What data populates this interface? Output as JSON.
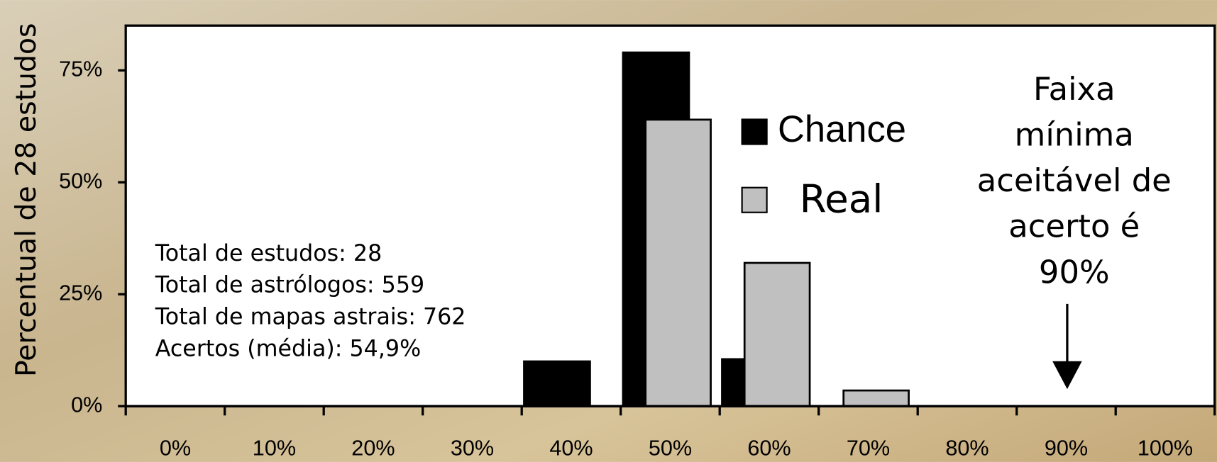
{
  "chart_data": {
    "type": "bar",
    "y_label": "Percentual de 28 estudos",
    "categories": [
      "0%",
      "10%",
      "20%",
      "30%",
      "40%",
      "50%",
      "60%",
      "70%",
      "80%",
      "90%",
      "100%"
    ],
    "series": [
      {
        "name": "Chance",
        "color": "#000000",
        "values": [
          0,
          0,
          0,
          0,
          10,
          79,
          10.5,
          0,
          0,
          0,
          0
        ]
      },
      {
        "name": "Real",
        "color": "#c0c0c0",
        "values": [
          0,
          0,
          0,
          0,
          0,
          64,
          32,
          3.5,
          0,
          0,
          0
        ]
      }
    ],
    "ylim": [
      0,
      85
    ],
    "yticks": [
      {
        "value": 0,
        "label": "0%"
      },
      {
        "value": 25,
        "label": "25%"
      },
      {
        "value": 50,
        "label": "50%"
      },
      {
        "value": 75,
        "label": "75%"
      }
    ],
    "stats_text": [
      "Total de estudos: 28",
      "Total de astrólogos: 559",
      "Total de mapas astrais: 762",
      "Acertos (média): 54,9%"
    ],
    "note_lines": [
      "Faixa",
      "mínima",
      "aceitável de",
      "acerto é",
      "90%"
    ]
  }
}
